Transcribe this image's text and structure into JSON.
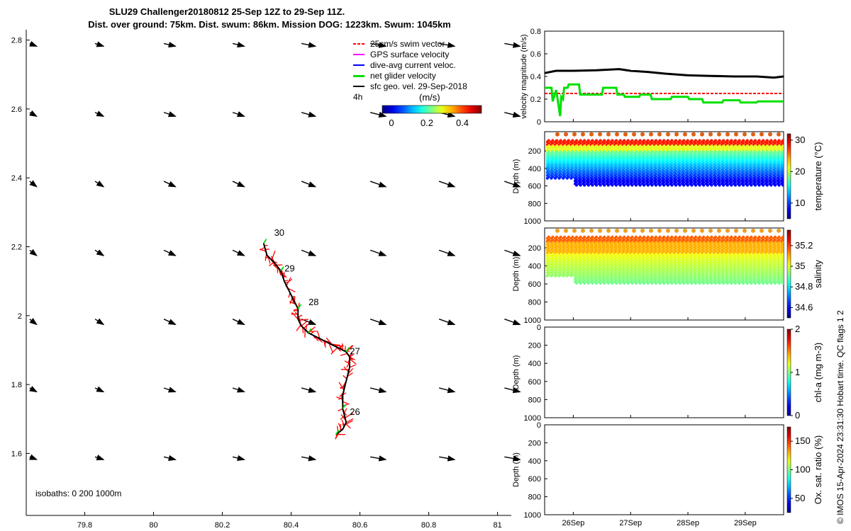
{
  "header": {
    "title_line1": "SLU29 Challenger20180812 25-Sep 12Z to 29-Sep 11Z.",
    "title_line2": "Dist. over ground: 75km. Dist. swum: 86km. Mission DOG: 1223km. Swum: 1045km"
  },
  "legend": [
    {
      "label": "25cm/s swim vector",
      "color": "#ff0000",
      "style": "dashed"
    },
    {
      "label": "GPS surface velocity",
      "color": "#ff00ff",
      "style": "solid"
    },
    {
      "label": "dive-avg current veloc.",
      "color": "#0000ff",
      "style": "solid"
    },
    {
      "label": "net glider velocity",
      "color": "#00e000",
      "style": "solid"
    },
    {
      "label": "sfc geo. vel. 29-Sep-2018",
      "color": "#000000",
      "style": "solid"
    }
  ],
  "map_labels": {
    "four_h": "4h",
    "colorbar_title": "(m/s)",
    "colorbar_ticks": [
      "0",
      "0.2",
      "0.4"
    ],
    "isobaths": "isobaths: 0   200  1000m",
    "day_labels": [
      {
        "day": "30",
        "lon": 80.33,
        "lat": 2.232
      },
      {
        "day": "29",
        "lon": 80.36,
        "lat": 2.128
      },
      {
        "day": "28",
        "lon": 80.43,
        "lat": 2.03
      },
      {
        "day": "27",
        "lon": 80.55,
        "lat": 1.888
      },
      {
        "day": "26",
        "lon": 80.55,
        "lat": 1.712
      }
    ]
  },
  "chart_data": [
    {
      "type": "scatter",
      "subtype": "map-quiver-track",
      "xlim": [
        79.63,
        81.04
      ],
      "ylim": [
        1.42,
        2.83
      ],
      "xticks": [
        "79.8",
        "80",
        "80.2",
        "80.4",
        "80.6",
        "80.8",
        "81"
      ],
      "yticks": [
        "1.6",
        "1.8",
        "2",
        "2.2",
        "2.4",
        "2.6",
        "2.8"
      ],
      "track": {
        "lon": [
          80.53,
          80.55,
          80.56,
          80.55,
          80.55,
          80.56,
          80.57,
          80.57,
          80.56,
          80.55,
          80.52,
          80.49,
          80.45,
          80.43,
          80.42,
          80.42,
          80.4,
          80.38,
          80.37,
          80.35,
          80.33,
          80.32
        ],
        "lat": [
          1.655,
          1.67,
          1.69,
          1.73,
          1.77,
          1.81,
          1.85,
          1.88,
          1.895,
          1.9,
          1.915,
          1.93,
          1.95,
          1.97,
          1.99,
          2.02,
          2.06,
          2.1,
          2.13,
          2.155,
          2.175,
          2.21
        ]
      },
      "geo_vectors_29_sep": {
        "lons": [
          79.64,
          79.83,
          80.03,
          80.23,
          80.43,
          80.63,
          80.83,
          81.02
        ],
        "lats": [
          1.59,
          1.79,
          1.99,
          2.19,
          2.39,
          2.59,
          2.79
        ],
        "du": [
          0.9,
          1.1,
          1.5,
          1.5,
          1.8,
          2.0,
          2.0,
          2.0
        ],
        "dv_per_row": [
          -0.35,
          -0.5,
          -0.7,
          -0.7,
          -0.7,
          -0.5,
          -0.35
        ]
      }
    },
    {
      "type": "line",
      "title": "",
      "ylabel": "velocity magnitude (m/s)",
      "ylim": [
        0,
        0.8
      ],
      "yticks": [
        "0",
        "0.2",
        "0.4",
        "0.6",
        "0.8"
      ],
      "xlim": [
        25.5,
        29.67
      ],
      "series": [
        {
          "name": "sfc geo. vel.",
          "color": "#000000",
          "x": [
            25.5,
            25.7,
            26.0,
            26.4,
            26.8,
            27.0,
            27.3,
            27.6,
            28.0,
            28.4,
            28.8,
            29.2,
            29.5,
            29.67
          ],
          "values": [
            0.43,
            0.45,
            0.45,
            0.455,
            0.465,
            0.45,
            0.44,
            0.425,
            0.41,
            0.405,
            0.4,
            0.4,
            0.39,
            0.4
          ]
        },
        {
          "name": "25cm/s swim vector",
          "color": "#ff0000",
          "x": [
            25.5,
            29.67
          ],
          "values": [
            0.25,
            0.25
          ]
        },
        {
          "name": "net glider velocity",
          "color": "#00e000",
          "x": [
            25.5,
            25.62,
            25.64,
            25.7,
            25.72,
            25.77,
            25.79,
            25.82,
            25.84,
            25.9,
            25.92,
            26.1,
            26.12,
            26.5,
            26.52,
            26.75,
            26.77,
            26.88,
            26.9,
            27.15,
            27.17,
            27.35,
            27.37,
            27.7,
            27.72,
            28.0,
            28.02,
            28.25,
            28.27,
            28.6,
            28.62,
            28.9,
            28.92,
            29.2,
            29.22,
            29.67
          ],
          "values": [
            0.3,
            0.3,
            0.18,
            0.28,
            0.22,
            0.05,
            0.22,
            0.2,
            0.3,
            0.3,
            0.33,
            0.33,
            0.24,
            0.24,
            0.3,
            0.3,
            0.24,
            0.24,
            0.22,
            0.22,
            0.24,
            0.24,
            0.2,
            0.2,
            0.22,
            0.22,
            0.2,
            0.2,
            0.17,
            0.17,
            0.19,
            0.19,
            0.17,
            0.17,
            0.18,
            0.18
          ]
        }
      ]
    },
    {
      "type": "scatter",
      "subtype": "depth-section",
      "ylabel": "Depth (m)",
      "cbar_label": "temperature (°C)",
      "yticks": [
        "200",
        "400",
        "600",
        "800",
        "1000"
      ],
      "cbar_ticks": [
        "10",
        "20",
        "30"
      ],
      "cbar_range": [
        5,
        32
      ]
    },
    {
      "type": "scatter",
      "subtype": "depth-section",
      "ylabel": "Depth (m)",
      "cbar_label": "salinity",
      "yticks": [
        "200",
        "400",
        "600",
        "800",
        "1000"
      ],
      "cbar_ticks": [
        "34.6",
        "34.8",
        "35",
        "35.2"
      ],
      "cbar_range": [
        34.5,
        35.35
      ]
    },
    {
      "type": "scatter",
      "subtype": "depth-section",
      "ylabel": "Depth (m)",
      "cbar_label": "chl-a (mg m-3)",
      "yticks": [
        "0",
        "200",
        "400",
        "600",
        "800",
        "1000"
      ],
      "cbar_ticks": [
        "0",
        "1",
        "2"
      ],
      "cbar_range": [
        0,
        2
      ]
    },
    {
      "type": "scatter",
      "subtype": "depth-section",
      "ylabel": "Depth (m)",
      "cbar_label": "Ox. sat. ratio (%)",
      "yticks": [
        "0",
        "200",
        "400",
        "600",
        "800",
        "1000"
      ],
      "cbar_ticks": [
        "50",
        "100",
        "150"
      ],
      "cbar_range": [
        25,
        175
      ],
      "xticks": [
        "26Sep",
        "27Sep",
        "28Sep",
        "29Sep"
      ]
    }
  ],
  "side_labels": {
    "qc_flags": "QC flags 1  2",
    "copyright": "© IMOS 15-Apr-2024 23:31:30 Hobart time. QC flags 1  2"
  }
}
